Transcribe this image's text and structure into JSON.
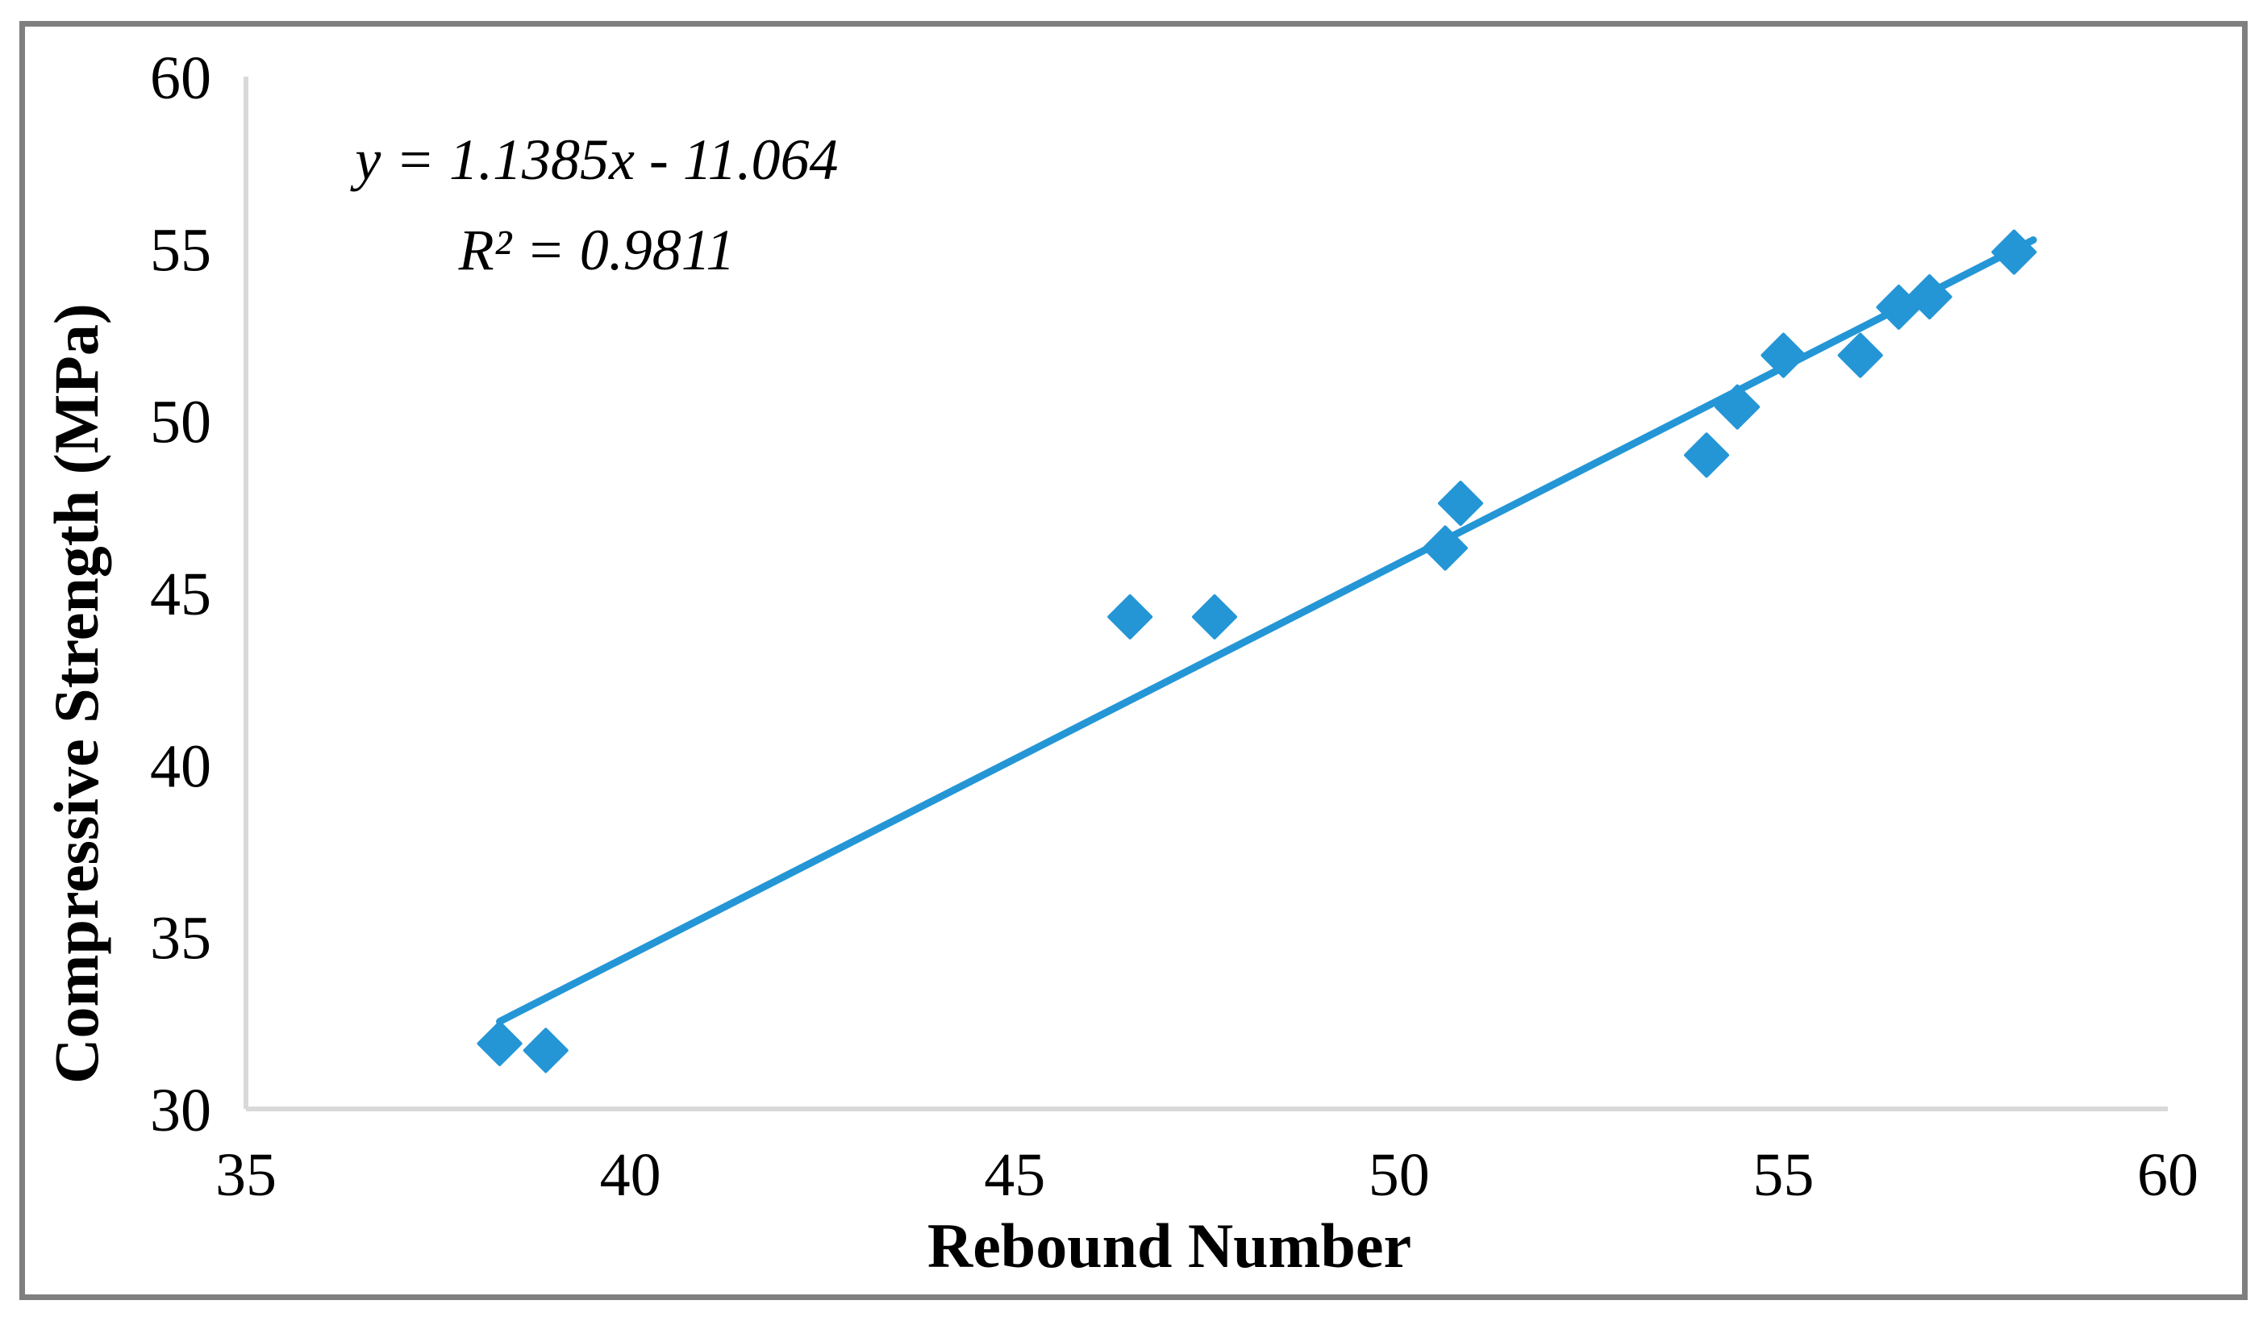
{
  "figure": {
    "background_color": "#FFFFFF",
    "border_color": "#7F7F7F"
  },
  "chart_data": {
    "type": "scatter",
    "title": "",
    "xlabel": "Rebound Number",
    "ylabel": "Compressive Strength (MPa)",
    "xlim": [
      35,
      60
    ],
    "ylim": [
      30,
      60
    ],
    "x_ticks": [
      "35",
      "40",
      "45",
      "50",
      "55",
      "60"
    ],
    "y_ticks": [
      "30",
      "35",
      "40",
      "45",
      "50",
      "55",
      "60"
    ],
    "grid": false,
    "legend": false,
    "marker": "diamond",
    "marker_color": "#2496D6",
    "axis_line_color": "#D9D9D9",
    "points": [
      [
        38.3,
        31.9
      ],
      [
        38.9,
        31.7
      ],
      [
        46.5,
        44.3
      ],
      [
        47.6,
        44.3
      ],
      [
        50.6,
        46.3
      ],
      [
        50.8,
        47.6
      ],
      [
        54.0,
        49.0
      ],
      [
        54.4,
        50.4
      ],
      [
        55.0,
        51.9
      ],
      [
        56.0,
        51.9
      ],
      [
        56.5,
        53.3
      ],
      [
        56.9,
        53.6
      ],
      [
        58.0,
        54.9
      ]
    ],
    "trendline": {
      "slope": 1.1385,
      "intercept": -11.064,
      "x_start": 38.3,
      "x_end": 58.25,
      "color": "#2496D6",
      "r_squared": 0.9811
    },
    "annotation": {
      "line1": "y = 1.1385x - 11.064",
      "line2": "R² = 0.9811"
    }
  }
}
